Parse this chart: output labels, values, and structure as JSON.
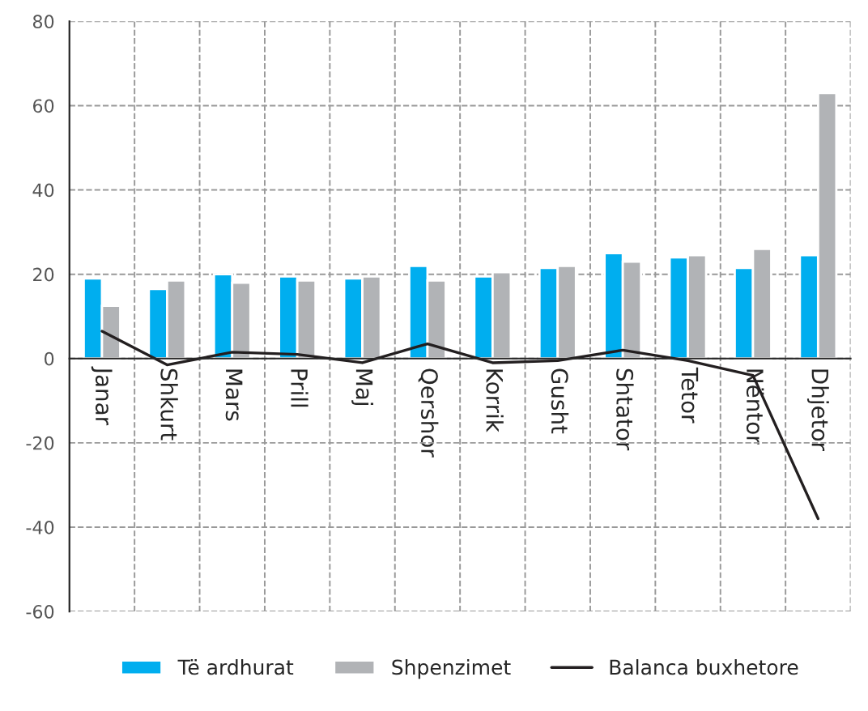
{
  "chart_data": {
    "type": "bar",
    "categories": [
      "Janar",
      "Shkurt",
      "Mars",
      "Prill",
      "Maj",
      "Qershor",
      "Korrik",
      "Gusht",
      "Shtator",
      "Tetor",
      "Nëntor",
      "Dhjetor"
    ],
    "series": [
      {
        "name": "Të ardhurat",
        "color": "#00aeef",
        "values": [
          19,
          16.5,
          20,
          19.5,
          19,
          22,
          19.5,
          21.5,
          25,
          24,
          21.5,
          24.5
        ]
      },
      {
        "name": "Shpenzimet",
        "color": "#b1b3b6",
        "values": [
          12.5,
          18.5,
          18,
          18.5,
          19.5,
          18.5,
          20.5,
          22,
          23,
          24.5,
          26,
          63
        ]
      },
      {
        "name": "Balanca buxhetore",
        "type": "line",
        "color": "#231f20",
        "values": [
          6.5,
          -1.5,
          1.5,
          1,
          -1,
          3.5,
          -1,
          -0.5,
          2,
          -0.5,
          -4,
          -38
        ]
      }
    ],
    "ylim": [
      -60,
      80
    ],
    "yticks": [
      -60,
      -40,
      -20,
      0,
      20,
      40,
      60,
      80
    ],
    "grid": true,
    "legend": "bottom",
    "marker": "none",
    "line_style": "solid"
  }
}
